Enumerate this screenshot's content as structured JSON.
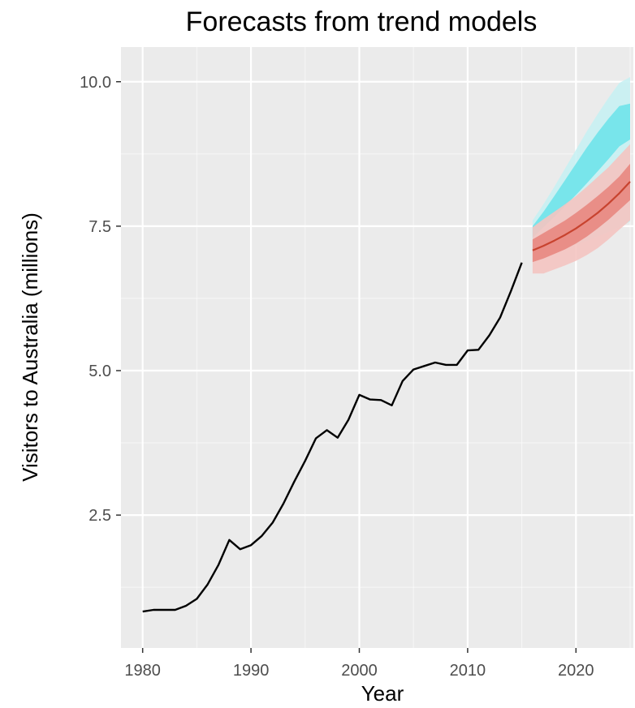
{
  "chart_data": {
    "type": "line",
    "title": "Forecasts from trend models",
    "xlabel": "Year",
    "ylabel": "Visitors to Australia (millions)",
    "xlim": [
      1978.0,
      2025.3
    ],
    "ylim": [
      0.2,
      10.6
    ],
    "x_ticks": [
      1980,
      1990,
      2000,
      2010,
      2020
    ],
    "x_tick_labels": [
      "1980",
      "1990",
      "2000",
      "2010",
      "2020"
    ],
    "y_ticks": [
      2.5,
      5.0,
      7.5,
      10.0
    ],
    "y_tick_labels": [
      "2.5",
      "5.0",
      "7.5",
      "10.0"
    ],
    "grid": true,
    "legend": "none",
    "colors": {
      "panel": "#ebebeb",
      "grid_major": "#ffffff",
      "observed": "#000000",
      "forecast_mean": "#c8432f",
      "red_80": "#e8877f",
      "red_95": "#f4c4c1",
      "cyan_80": "#6fe3ea",
      "cyan_95": "#c8f1f3"
    },
    "series": [
      {
        "x": [
          1980,
          1981,
          1982,
          1983,
          1984,
          1985,
          1986,
          1987,
          1988,
          1989,
          1990,
          1991,
          1992,
          1993,
          1994,
          1995,
          1996,
          1997,
          1998,
          1999,
          2000,
          2001,
          2002,
          2003,
          2004,
          2005,
          2006,
          2007,
          2008,
          2009,
          2010,
          2011,
          2012,
          2013,
          2014,
          2015
        ],
        "values": [
          0.83,
          0.86,
          0.86,
          0.86,
          0.93,
          1.05,
          1.3,
          1.64,
          2.07,
          1.91,
          1.98,
          2.14,
          2.37,
          2.7,
          3.08,
          3.44,
          3.83,
          3.97,
          3.84,
          4.15,
          4.58,
          4.5,
          4.49,
          4.4,
          4.82,
          5.02,
          5.08,
          5.14,
          5.1,
          5.1,
          5.35,
          5.36,
          5.61,
          5.92,
          6.38,
          6.87
        ]
      },
      {
        "x": [
          2016,
          2017,
          2018,
          2019,
          2020,
          2021,
          2022,
          2023,
          2024,
          2025
        ],
        "values": [
          7.08,
          7.16,
          7.25,
          7.35,
          7.46,
          7.59,
          7.73,
          7.89,
          8.07,
          8.27
        ]
      },
      {
        "x": [
          2016,
          2017,
          2018,
          2019,
          2020,
          2021,
          2022,
          2023,
          2024,
          2025
        ],
        "lower": [
          6.68,
          6.68,
          6.75,
          6.82,
          6.9,
          7.0,
          7.12,
          7.27,
          7.44,
          7.6
        ],
        "upper": [
          7.48,
          7.62,
          7.75,
          7.88,
          8.02,
          8.18,
          8.35,
          8.52,
          8.72,
          8.92
        ]
      },
      {
        "x": [
          2016,
          2017,
          2018,
          2019,
          2020,
          2021,
          2022,
          2023,
          2024,
          2025
        ],
        "lower": [
          6.88,
          6.94,
          7.02,
          7.1,
          7.2,
          7.32,
          7.46,
          7.61,
          7.78,
          7.95
        ],
        "upper": [
          7.27,
          7.38,
          7.49,
          7.6,
          7.73,
          7.87,
          8.02,
          8.18,
          8.36,
          8.58
        ]
      },
      {
        "x": [
          2016,
          2017,
          2018,
          2019,
          2020,
          2021,
          2022,
          2023,
          2024,
          2025
        ],
        "lower": [
          7.02,
          7.05,
          7.08,
          7.12,
          7.18,
          7.24,
          7.32,
          7.4,
          7.48,
          7.58
        ],
        "upper": [
          7.6,
          7.88,
          8.18,
          8.5,
          8.82,
          9.14,
          9.44,
          9.72,
          9.98,
          10.08
        ]
      },
      {
        "x": [
          2016,
          2017,
          2018,
          2019,
          2020,
          2021,
          2022,
          2023,
          2024,
          2025
        ],
        "lower": [
          7.3,
          7.48,
          7.66,
          7.85,
          8.04,
          8.24,
          8.45,
          8.66,
          8.88,
          9.0
        ],
        "upper": [
          7.5,
          7.75,
          8.02,
          8.3,
          8.58,
          8.86,
          9.12,
          9.36,
          9.58,
          9.62
        ]
      }
    ]
  }
}
